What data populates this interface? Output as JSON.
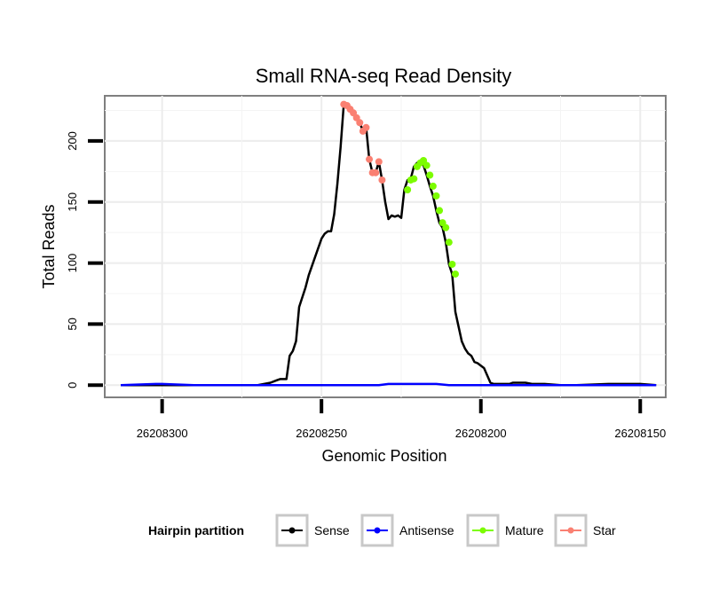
{
  "chart_data": {
    "type": "line",
    "title": "Small RNA-seq Read Density",
    "xlabel": "Genomic Position",
    "ylabel": "Total Reads",
    "xlim": [
      26208318,
      26208142
    ],
    "ylim": [
      -10,
      237
    ],
    "x_reversed": true,
    "xticks": [
      26208300,
      26208250,
      26208200,
      26208150
    ],
    "xtick_labels": [
      "26208300",
      "26208250",
      "26208200",
      "26208150"
    ],
    "yticks": [
      0,
      50,
      100,
      150,
      200
    ],
    "ytick_labels": [
      "0",
      "50",
      "100",
      "150",
      "200"
    ],
    "grid": true,
    "legend": {
      "title": "Hairpin partition",
      "position": "bottom",
      "entries": [
        "Sense",
        "Antisense",
        "Mature",
        "Star"
      ]
    },
    "series": [
      {
        "name": "Sense",
        "color": "#000000",
        "marker": false,
        "x": [
          26208313,
          26208300,
          26208290,
          26208280,
          26208270,
          26208266,
          26208264,
          26208263,
          26208261,
          26208260,
          26208259,
          26208258,
          26208257,
          26208256,
          26208255,
          26208254,
          26208252,
          26208250,
          26208249,
          26208248,
          26208247,
          26208246,
          26208245,
          26208244,
          26208243,
          26208242,
          26208241,
          26208240,
          26208239,
          26208238,
          26208237,
          26208236,
          26208235,
          26208234,
          26208233,
          26208232,
          26208231,
          26208230,
          26208229,
          26208228,
          26208227,
          26208226,
          26208225,
          26208224,
          26208223,
          26208222,
          26208221,
          26208220,
          26208219,
          26208218,
          26208217,
          26208216,
          26208215,
          26208214,
          26208213,
          26208212,
          26208211,
          26208210,
          26208209,
          26208208,
          26208207,
          26208206,
          26208205,
          26208204,
          26208203,
          26208202,
          26208201,
          26208200,
          26208199,
          26208198,
          26208197,
          26208196,
          26208195,
          26208194,
          26208193,
          26208192,
          26208191,
          26208190,
          26208188,
          26208186,
          26208184,
          26208180,
          26208175,
          26208170,
          26208160,
          26208150,
          26208145
        ],
        "y": [
          0,
          0,
          0,
          0,
          0,
          2,
          4,
          5,
          5,
          24,
          28,
          36,
          64,
          72,
          80,
          90,
          105,
          120,
          124,
          126,
          126,
          140,
          165,
          195,
          230,
          229,
          226,
          223,
          219,
          215,
          208,
          211,
          185,
          174,
          174,
          183,
          168,
          150,
          136,
          139,
          138,
          139,
          137,
          160,
          168,
          169,
          179,
          182,
          184,
          180,
          172,
          163,
          155,
          143,
          133,
          129,
          117,
          99,
          91,
          60,
          48,
          36,
          30,
          26,
          24,
          19,
          18,
          16,
          14,
          8,
          2,
          1,
          1,
          1,
          1,
          1,
          1,
          2,
          2,
          2,
          1,
          1,
          0,
          0,
          1,
          1,
          0
        ]
      },
      {
        "name": "Antisense",
        "color": "#0000ff",
        "marker": false,
        "x": [
          26208313,
          26208302,
          26208300,
          26208290,
          26208285,
          26208260,
          26208232,
          26208229,
          26208214,
          26208210,
          26208160,
          26208150,
          26208145
        ],
        "y": [
          0,
          1,
          1,
          0,
          0,
          0,
          0,
          1,
          1,
          0,
          0,
          0,
          0
        ]
      },
      {
        "name": "Mature",
        "color": "#7cfc00",
        "marker": true,
        "x": [
          26208223,
          26208222,
          26208221,
          26208220,
          26208219,
          26208218,
          26208217,
          26208216,
          26208215,
          26208214,
          26208213,
          26208212,
          26208211,
          26208210,
          26208209,
          26208208
        ],
        "y": [
          160,
          168,
          169,
          179,
          182,
          184,
          180,
          172,
          163,
          155,
          143,
          133,
          129,
          117,
          99,
          91
        ]
      },
      {
        "name": "Star",
        "color": "#fa8072",
        "marker": true,
        "x": [
          26208243,
          26208242,
          26208241,
          26208240,
          26208239,
          26208238,
          26208237,
          26208236,
          26208235,
          26208234,
          26208233,
          26208232,
          26208231
        ],
        "y": [
          230,
          229,
          226,
          223,
          219,
          215,
          208,
          211,
          185,
          174,
          174,
          183,
          168
        ]
      }
    ]
  }
}
